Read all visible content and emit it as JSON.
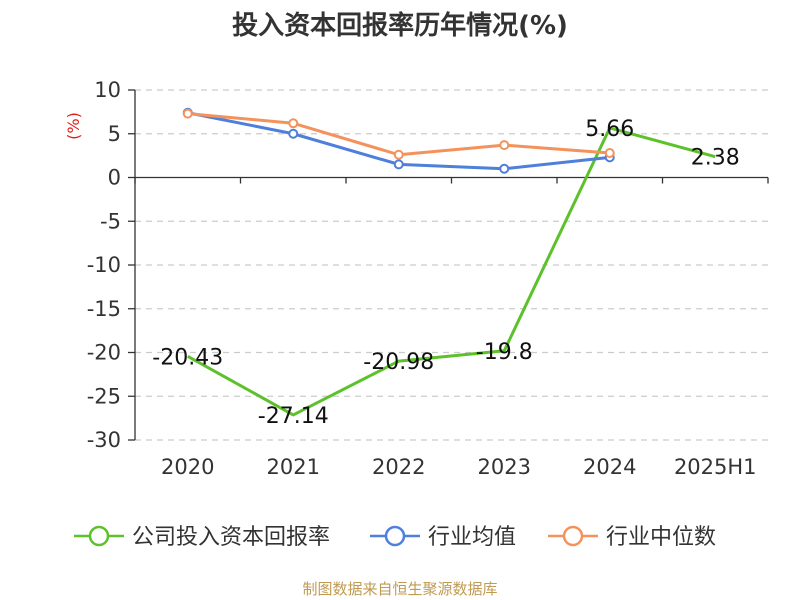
{
  "chart_data": {
    "type": "line",
    "title": "投入资本回报率历年情况(%)",
    "ylabel": "(%)",
    "categories": [
      "2020",
      "2021",
      "2022",
      "2023",
      "2024",
      "2025H1"
    ],
    "ylim": [
      -30,
      10
    ],
    "yticks": [
      10,
      5,
      0,
      -5,
      -10,
      -15,
      -20,
      -25,
      -30
    ],
    "grid": true,
    "legend_position": "bottom",
    "series": [
      {
        "name": "公司投入资本回报率",
        "color": "#5cc12a",
        "values": [
          -20.43,
          -27.14,
          -20.98,
          -19.8,
          5.66,
          2.38
        ],
        "labels": [
          "-20.43",
          "-27.14",
          "-20.98",
          "-19.8",
          "5.66",
          "2.38"
        ]
      },
      {
        "name": "行业均值",
        "color": "#4d7fdb",
        "values": [
          7.4,
          5.0,
          1.5,
          1.0,
          2.3,
          null
        ]
      },
      {
        "name": "行业中位数",
        "color": "#f4925c",
        "values": [
          7.3,
          6.2,
          2.6,
          3.7,
          2.8,
          null
        ]
      }
    ]
  },
  "footer": {
    "source": "制图数据来自恒生聚源数据库"
  }
}
